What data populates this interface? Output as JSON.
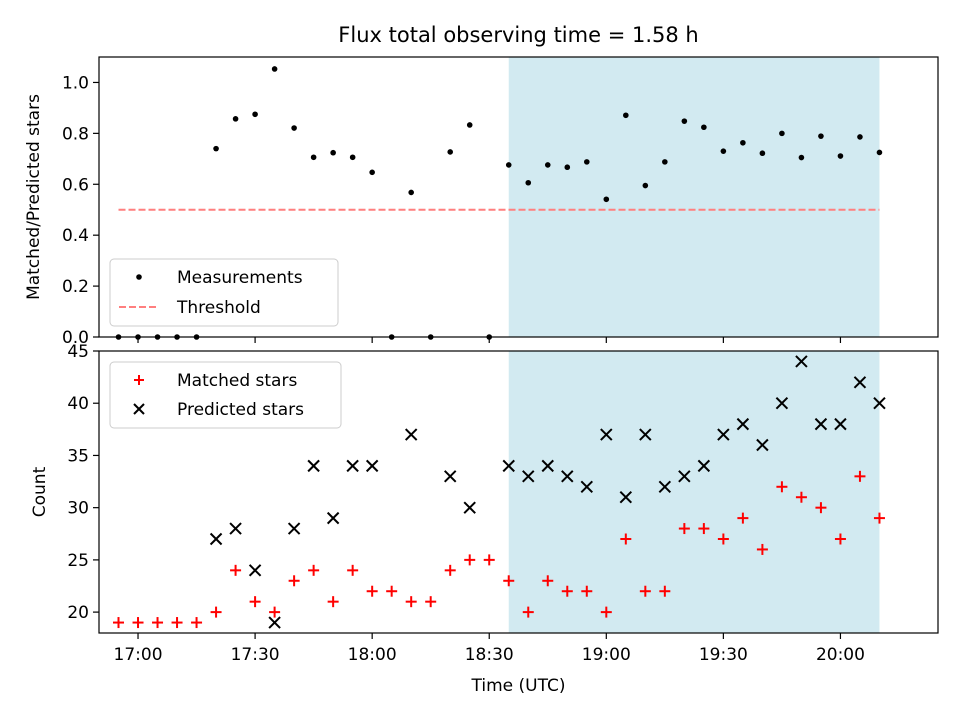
{
  "chart_data": [
    {
      "type": "scatter",
      "title": "Flux total observing time = 1.58 h",
      "ylabel": "Matched/Predicted stars",
      "xlabel": "",
      "ylim": [
        0,
        1.1
      ],
      "yticks": [
        "0.0",
        "0.2",
        "0.4",
        "0.6",
        "0.8",
        "1.0"
      ],
      "ytick_values": [
        0,
        0.2,
        0.4,
        0.6,
        0.8,
        1.0
      ],
      "xlim": [
        "16:50",
        "20:25"
      ],
      "grid": false,
      "legend_placement": "lower-left",
      "shaded_region": {
        "x_start": "18:35",
        "x_end": "20:10",
        "color": "#add8e6"
      },
      "series": [
        {
          "name": "Measurements",
          "color": "#000000",
          "marker": "dot",
          "x": [
            "16:55",
            "17:00",
            "17:05",
            "17:10",
            "17:15",
            "17:20",
            "17:25",
            "17:30",
            "17:35",
            "17:40",
            "17:45",
            "17:50",
            "17:55",
            "18:00",
            "18:05",
            "18:10",
            "18:15",
            "18:20",
            "18:25",
            "18:30",
            "18:35",
            "18:40",
            "18:45",
            "18:50",
            "18:55",
            "19:00",
            "19:05",
            "19:10",
            "19:15",
            "19:20",
            "19:25",
            "19:30",
            "19:35",
            "19:40",
            "19:45",
            "19:50",
            "19:55",
            "20:00",
            "20:05",
            "20:10"
          ],
          "y": [
            0,
            0,
            0,
            0,
            0,
            0.74,
            0.857,
            0.875,
            1.053,
            0.821,
            0.706,
            0.724,
            0.706,
            0.647,
            0,
            0.568,
            0,
            0.727,
            0.833,
            0,
            0.676,
            0.606,
            0.676,
            0.667,
            0.688,
            0.541,
            0.871,
            0.595,
            0.688,
            0.848,
            0.824,
            0.73,
            0.763,
            0.722,
            0.8,
            0.705,
            0.789,
            0.711,
            0.786,
            0.725
          ]
        },
        {
          "name": "Threshold",
          "color": "#ff7f7f",
          "style": "dashed",
          "x": [
            "16:55",
            "20:10"
          ],
          "y": [
            0.5,
            0.5
          ]
        }
      ]
    },
    {
      "type": "scatter",
      "title": "",
      "xlabel": "Time (UTC)",
      "ylabel": "Count",
      "ylim": [
        18,
        45
      ],
      "yticks": [
        "20",
        "25",
        "30",
        "35",
        "40",
        "45"
      ],
      "ytick_values": [
        20,
        25,
        30,
        35,
        40,
        45
      ],
      "xlim": [
        "16:50",
        "20:25"
      ],
      "xticks": [
        "17:00",
        "17:30",
        "18:00",
        "18:30",
        "19:00",
        "19:30",
        "20:00"
      ],
      "grid": false,
      "legend_placement": "upper-left",
      "shaded_region": {
        "x_start": "18:35",
        "x_end": "20:10",
        "color": "#add8e6"
      },
      "series": [
        {
          "name": "Matched stars",
          "color": "#ff0000",
          "marker": "plus",
          "x": [
            "16:55",
            "17:00",
            "17:05",
            "17:10",
            "17:15",
            "17:20",
            "17:25",
            "17:30",
            "17:35",
            "17:40",
            "17:45",
            "17:50",
            "17:55",
            "18:00",
            "18:05",
            "18:10",
            "18:15",
            "18:20",
            "18:25",
            "18:30",
            "18:35",
            "18:40",
            "18:45",
            "18:50",
            "18:55",
            "19:00",
            "19:05",
            "19:10",
            "19:15",
            "19:20",
            "19:25",
            "19:30",
            "19:35",
            "19:40",
            "19:45",
            "19:50",
            "19:55",
            "20:00",
            "20:05",
            "20:10"
          ],
          "y": [
            19,
            19,
            19,
            19,
            19,
            20,
            24,
            21,
            20,
            23,
            24,
            21,
            24,
            22,
            22,
            21,
            21,
            24,
            25,
            25,
            23,
            20,
            23,
            22,
            22,
            20,
            27,
            22,
            22,
            28,
            28,
            27,
            29,
            26,
            32,
            31,
            30,
            27,
            33,
            29
          ]
        },
        {
          "name": "Predicted stars",
          "color": "#000000",
          "marker": "x",
          "x": [
            "17:20",
            "17:25",
            "17:30",
            "17:35",
            "17:40",
            "17:45",
            "17:50",
            "17:55",
            "18:00",
            "18:10",
            "18:20",
            "18:25",
            "18:35",
            "18:40",
            "18:45",
            "18:50",
            "18:55",
            "19:00",
            "19:05",
            "19:10",
            "19:15",
            "19:20",
            "19:25",
            "19:30",
            "19:35",
            "19:40",
            "19:45",
            "19:50",
            "19:55",
            "20:00",
            "20:05",
            "20:10"
          ],
          "y": [
            27,
            28,
            24,
            19,
            28,
            34,
            29,
            34,
            34,
            37,
            33,
            30,
            34,
            33,
            34,
            33,
            32,
            37,
            31,
            37,
            32,
            33,
            34,
            37,
            38,
            36,
            40,
            44,
            38,
            38,
            42,
            40
          ]
        }
      ]
    }
  ]
}
